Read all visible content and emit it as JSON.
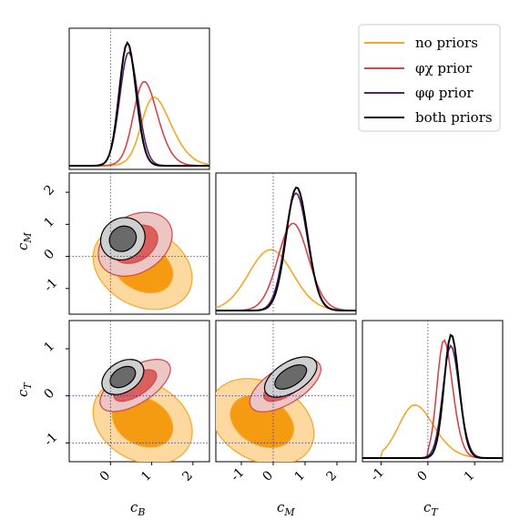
{
  "chart_data": {
    "type": "corner",
    "parameters": [
      {
        "key": "cB",
        "label": "c",
        "sub": "B",
        "range": [
          -1,
          2.4
        ],
        "ticks": [
          "0",
          "1",
          "2"
        ],
        "tick_values": [
          0,
          1,
          2
        ],
        "fiducial": 0
      },
      {
        "key": "cM",
        "label": "c",
        "sub": "M",
        "range": [
          -1.8,
          2.6
        ],
        "ticks": [
          "-1",
          "0",
          "1",
          "2"
        ],
        "tick_values": [
          -1,
          0,
          1,
          2
        ],
        "fiducial": 0
      },
      {
        "key": "cT",
        "label": "c",
        "sub": "T",
        "range": [
          -1.4,
          1.6
        ],
        "ticks": [
          "-1",
          "0",
          "1"
        ],
        "tick_values": [
          -1,
          0,
          1
        ],
        "fiducial": 0
      }
    ],
    "fiducial_lines": {
      "cT": -1
    },
    "series": [
      {
        "name": "no priors",
        "color": "#f5a623",
        "mean": [
          0.78,
          -0.35,
          -0.55
        ],
        "sd": [
          0.55,
          0.75,
          0.52
        ],
        "skew": [
          2.0,
          0.5,
          1.4
        ],
        "cT_lower_bound": -1.0,
        "fill_light": "#fdd9a0",
        "fill_dark": "#f59b12"
      },
      {
        "name": "φχ prior",
        "color": "#d6454a",
        "mean": [
          0.6,
          0.38,
          0.22
        ],
        "sd": [
          0.42,
          0.55,
          0.24
        ],
        "skew": [
          1.6,
          0.7,
          1.6
        ],
        "cT_lower_bound": 0.0,
        "fill_light": "#ecc6c2",
        "fill_dark": "#d9605d"
      },
      {
        "name": "φφ prior",
        "color": "#5a1f6e",
        "mean": [
          0.32,
          0.52,
          0.38
        ],
        "sd": [
          0.26,
          0.42,
          0.22
        ],
        "skew": [
          0.8,
          0.8,
          1.0
        ],
        "fill_light": "#cfcfcf",
        "fill_dark": "#6a6a6a"
      },
      {
        "name": "both priors",
        "color": "#000000",
        "mean": [
          0.3,
          0.55,
          0.4
        ],
        "sd": [
          0.24,
          0.4,
          0.2
        ],
        "skew": [
          0.8,
          0.8,
          1.0
        ],
        "fill_light": "#cfcfcf",
        "fill_dark": "#6a6a6a"
      }
    ],
    "legend": {
      "position": "top-right",
      "entries": [
        "no priors",
        "φχ prior",
        "φφ prior",
        "both priors"
      ]
    }
  }
}
